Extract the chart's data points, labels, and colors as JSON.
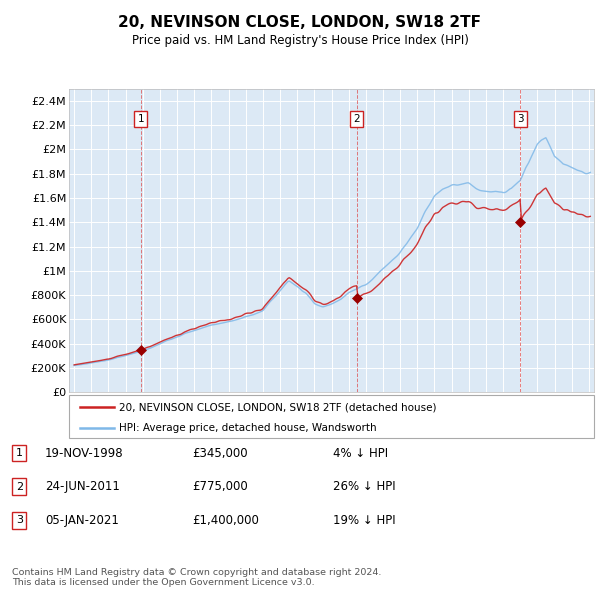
{
  "title": "20, NEVINSON CLOSE, LONDON, SW18 2TF",
  "subtitle": "Price paid vs. HM Land Registry's House Price Index (HPI)",
  "background_color": "#ffffff",
  "plot_bg_color": "#dce9f5",
  "grid_color": "#ffffff",
  "hpi_line_color": "#7fb8e8",
  "price_line_color": "#cc2222",
  "sale_marker_color": "#990000",
  "transactions": [
    {
      "date_num": 1998.88,
      "price": 345000,
      "label": "1",
      "pct": "4% ↓ HPI",
      "date_str": "19-NOV-1998"
    },
    {
      "date_num": 2011.48,
      "price": 775000,
      "label": "2",
      "pct": "26% ↓ HPI",
      "date_str": "24-JUN-2011"
    },
    {
      "date_num": 2021.01,
      "price": 1400000,
      "label": "3",
      "pct": "19% ↓ HPI",
      "date_str": "05-JAN-2021"
    }
  ],
  "ylim": [
    0,
    2500000
  ],
  "xlim": [
    1994.7,
    2025.3
  ],
  "yticks": [
    0,
    200000,
    400000,
    600000,
    800000,
    1000000,
    1200000,
    1400000,
    1600000,
    1800000,
    2000000,
    2200000,
    2400000
  ],
  "ytick_labels": [
    "£0",
    "£200K",
    "£400K",
    "£600K",
    "£800K",
    "£1M",
    "£1.2M",
    "£1.4M",
    "£1.6M",
    "£1.8M",
    "£2M",
    "£2.2M",
    "£2.4M"
  ],
  "xticks": [
    1995,
    1996,
    1997,
    1998,
    1999,
    2000,
    2001,
    2002,
    2003,
    2004,
    2005,
    2006,
    2007,
    2008,
    2009,
    2010,
    2011,
    2012,
    2013,
    2014,
    2015,
    2016,
    2017,
    2018,
    2019,
    2020,
    2021,
    2022,
    2023,
    2024,
    2025
  ],
  "legend_line1": "20, NEVINSON CLOSE, LONDON, SW18 2TF (detached house)",
  "legend_line2": "HPI: Average price, detached house, Wandsworth",
  "footer": "Contains HM Land Registry data © Crown copyright and database right 2024.\nThis data is licensed under the Open Government Licence v3.0.",
  "vline_color": "#dd4444",
  "label_box_color": "#cc2222"
}
